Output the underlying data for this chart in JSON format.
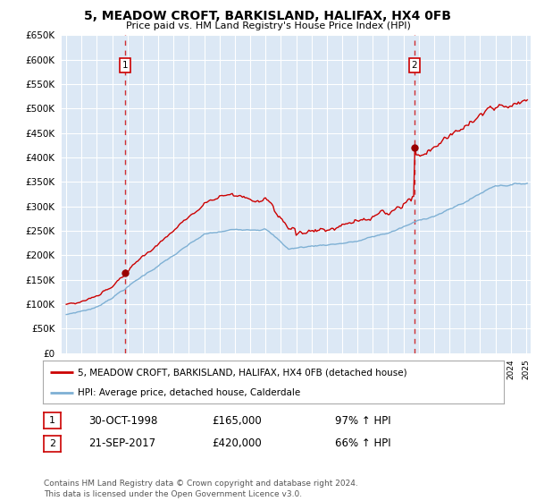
{
  "title": "5, MEADOW CROFT, BARKISLAND, HALIFAX, HX4 0FB",
  "subtitle": "Price paid vs. HM Land Registry's House Price Index (HPI)",
  "sale1_date": "30-OCT-1998",
  "sale1_price": 165000,
  "sale1_year": 1998.83,
  "sale2_date": "21-SEP-2017",
  "sale2_price": 420000,
  "sale2_year": 2017.72,
  "legend_line1": "5, MEADOW CROFT, BARKISLAND, HALIFAX, HX4 0FB (detached house)",
  "legend_line2": "HPI: Average price, detached house, Calderdale",
  "footnote": "Contains HM Land Registry data © Crown copyright and database right 2024.\nThis data is licensed under the Open Government Licence v3.0.",
  "red_color": "#cc0000",
  "blue_color": "#7eb0d4",
  "background_color": "#dce8f5",
  "grid_color": "#ffffff",
  "ylim": [
    0,
    650000
  ],
  "yticks": [
    0,
    50000,
    100000,
    150000,
    200000,
    250000,
    300000,
    350000,
    400000,
    450000,
    500000,
    550000,
    600000,
    650000
  ],
  "xlim_start": 1994.7,
  "xlim_end": 2025.3
}
